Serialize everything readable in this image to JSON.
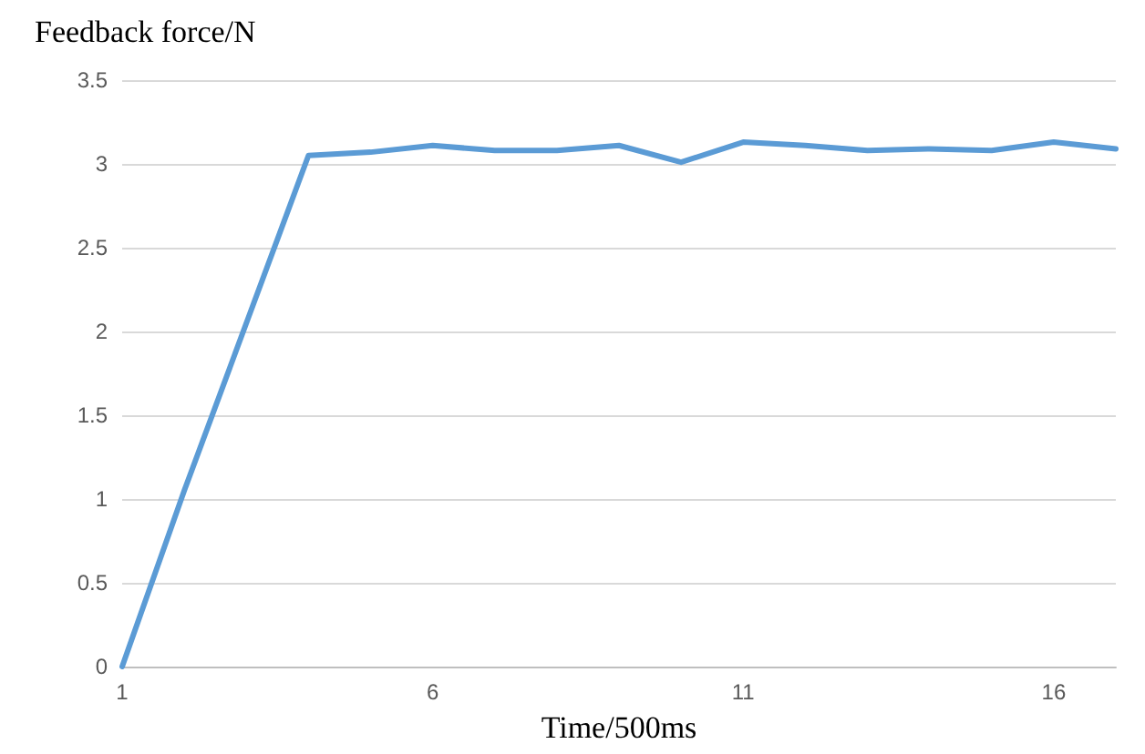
{
  "chart_data": {
    "type": "line",
    "ylabel": "Feedback force/N",
    "xlabel": "Time/500ms",
    "x": [
      1,
      2,
      3,
      4,
      5,
      6,
      7,
      8,
      9,
      10,
      11,
      12,
      13,
      14,
      15,
      16,
      17
    ],
    "series": [
      {
        "color": "#5b9bd5",
        "values": [
          0,
          1.05,
          2.05,
          3.05,
          3.07,
          3.11,
          3.08,
          3.08,
          3.11,
          3.01,
          3.13,
          3.11,
          3.08,
          3.09,
          3.08,
          3.13,
          3.09
        ]
      }
    ],
    "xlim": [
      1,
      17
    ],
    "xticks": [
      1,
      6,
      11,
      16
    ],
    "ylim": [
      0,
      3.5
    ],
    "yticks": [
      0,
      0.5,
      1,
      1.5,
      2,
      2.5,
      3,
      3.5
    ],
    "grid": "y",
    "marker": "none",
    "line_style": "solid"
  }
}
